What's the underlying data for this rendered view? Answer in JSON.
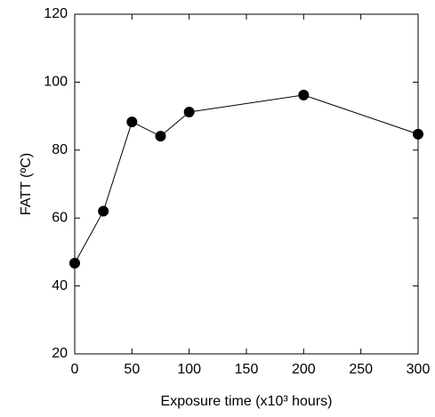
{
  "chart_data": {
    "type": "line",
    "xlabel": "Exposure time (x10³ hours)",
    "ylabel": "FATT (ºC)",
    "x": [
      0,
      25,
      50,
      75,
      100,
      200,
      300
    ],
    "values": [
      46.7,
      62,
      88.3,
      84.1,
      91.2,
      96.2,
      84.7
    ],
    "color": "#000000",
    "markers": true,
    "xlim": [
      0,
      300
    ],
    "xticks": [
      0,
      50,
      100,
      150,
      200,
      250,
      300
    ],
    "ylim": [
      20,
      120
    ],
    "yticks": [
      20,
      40,
      60,
      80,
      100,
      120
    ]
  }
}
